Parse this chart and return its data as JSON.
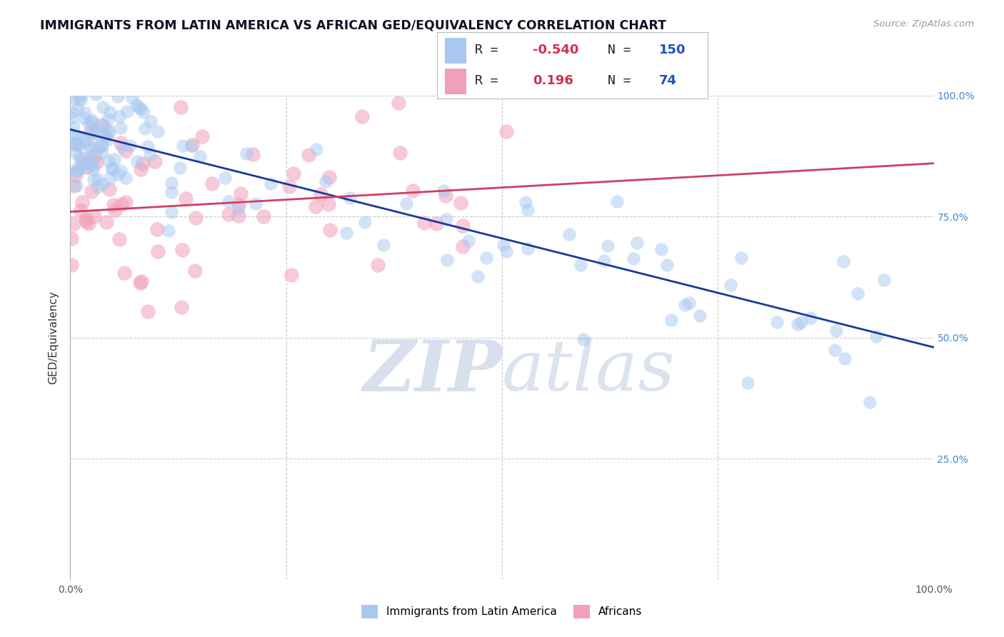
{
  "title": "IMMIGRANTS FROM LATIN AMERICA VS AFRICAN GED/EQUIVALENCY CORRELATION CHART",
  "source": "Source: ZipAtlas.com",
  "ylabel": "GED/Equivalency",
  "xlim": [
    0.0,
    1.0
  ],
  "ylim": [
    0.0,
    1.0
  ],
  "blue_R": -0.54,
  "blue_N": 150,
  "pink_R": 0.196,
  "pink_N": 74,
  "blue_color": "#a8c8f0",
  "pink_color": "#f0a0b8",
  "blue_line_color": "#1a3a9a",
  "pink_line_color": "#d04060",
  "legend_R_color": "#d03050",
  "legend_N_color": "#2050c0",
  "background_color": "#ffffff",
  "grid_color": "#cccccc",
  "watermark_color": "#c8d4e8",
  "title_color": "#111122",
  "axis_label_color": "#333333",
  "blue_line_start_y": 0.93,
  "blue_line_end_y": 0.48,
  "pink_line_start_y": 0.76,
  "pink_line_end_y": 0.86
}
